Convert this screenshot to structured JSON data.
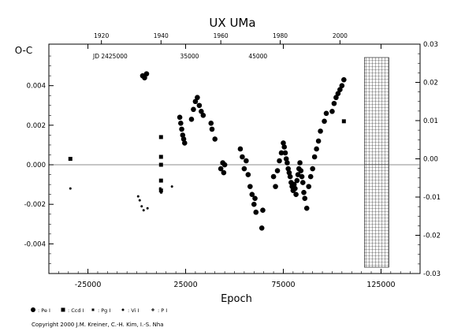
{
  "chart_data": {
    "type": "scatter",
    "title": "UX UMa",
    "xlabel": "Epoch",
    "ylabel_left": "O-C",
    "xlim": [
      -45000,
      145000
    ],
    "ylim_left": [
      -0.0055,
      0.0061
    ],
    "ylim_right": [
      -0.03,
      0.03
    ],
    "x_ticks": [
      "-25000",
      "25000",
      "75000",
      "125000"
    ],
    "x_tick_values": [
      -25000,
      25000,
      75000,
      125000
    ],
    "y_ticks_left": [
      "-0.004",
      "-0.002",
      "0.000",
      "0.002",
      "0.004"
    ],
    "y_tick_values_left": [
      -0.004,
      -0.002,
      0.0,
      0.002,
      0.004
    ],
    "y_ticks_right": [
      "-0.03",
      "-0.02",
      "-0.01",
      "0.00",
      "0.01",
      "0.02",
      "0.03"
    ],
    "y_tick_values_right": [
      -0.03,
      -0.02,
      -0.01,
      0.0,
      0.01,
      0.02,
      0.03
    ],
    "top_axis": {
      "year_ticks": [
        "1920",
        "1940",
        "1960",
        "1980",
        "2000"
      ],
      "year_tick_epochs": [
        -18100,
        12400,
        43000,
        73400,
        104000
      ],
      "jd_label": "JD 2425000",
      "jd_ticks": [
        "35000",
        "45000"
      ],
      "jd_tick_epochs": [
        27000,
        62000
      ]
    },
    "series": [
      {
        "name": ": Pe I",
        "marker": "circle",
        "x": [
          3000,
          4000,
          5000,
          22000,
          22500,
          23000,
          23500,
          24000,
          24500,
          28000,
          29000,
          30000,
          31000,
          32000,
          33000,
          34000,
          38000,
          38500,
          40000,
          43000,
          44000,
          44500,
          45000,
          53000,
          54000,
          55000,
          56000,
          57000,
          58000,
          59000,
          60000,
          60500,
          61000,
          64000,
          64500,
          70000,
          71000,
          72000,
          73000,
          74000,
          75000,
          75500,
          76000,
          76500,
          77000,
          77500,
          78000,
          78500,
          79000,
          79500,
          80000,
          80500,
          81000,
          81500,
          82000,
          82500,
          83000,
          83500,
          84000,
          84500,
          85000,
          85500,
          86000,
          87000,
          88000,
          89000,
          90000,
          91000,
          92000,
          93000,
          94000,
          96000,
          97000,
          100000,
          101000,
          102000,
          103000,
          104000,
          105000,
          106000
        ],
        "y": [
          0.0045,
          0.0044,
          0.0046,
          0.0024,
          0.0021,
          0.0018,
          0.0015,
          0.0013,
          0.0011,
          0.0023,
          0.0028,
          0.0032,
          0.0034,
          0.003,
          0.0027,
          0.0025,
          0.0021,
          0.0018,
          0.0013,
          -0.0002,
          0.0001,
          -0.0004,
          0.0,
          0.0008,
          0.0004,
          -0.0002,
          0.0002,
          -0.0005,
          -0.0011,
          -0.0015,
          -0.002,
          -0.0017,
          -0.0024,
          -0.0032,
          -0.0023,
          -0.0006,
          -0.0011,
          -0.0003,
          0.0002,
          0.0006,
          0.0011,
          0.0009,
          0.0006,
          0.0003,
          0.0001,
          -0.0002,
          -0.0004,
          -0.0006,
          -0.0009,
          -0.0011,
          -0.0013,
          -0.001,
          -0.0012,
          -0.0015,
          -0.0008,
          -0.0005,
          -0.0002,
          0.0001,
          -0.0003,
          -0.0006,
          -0.0009,
          -0.0014,
          -0.0017,
          -0.0022,
          -0.0011,
          -0.0006,
          -0.0002,
          0.0004,
          0.0008,
          0.0012,
          0.0017,
          0.0022,
          0.0026,
          0.0027,
          0.0031,
          0.0034,
          0.0036,
          0.0038,
          0.004,
          0.0043
        ],
        "color": "#000000"
      },
      {
        "name": ": Ccd I",
        "marker": "square",
        "x": [
          -34000,
          12400,
          12400,
          12400,
          12400,
          12400,
          106000
        ],
        "y": [
          0.0003,
          0.0014,
          0.0004,
          0.0,
          -0.0008,
          -0.0013,
          0.0022
        ],
        "color": "#000000"
      },
      {
        "name": ": Pg I",
        "marker": "small-square",
        "x": [
          12000,
          12500
        ],
        "y": [
          -0.0012,
          -0.0014
        ],
        "color": "#000000"
      },
      {
        "name": ": Vi I",
        "marker": "dot",
        "x": [
          -34000,
          700,
          1500,
          2500,
          3500,
          5500,
          18000
        ],
        "y": [
          -0.0012,
          -0.0016,
          -0.0018,
          -0.0021,
          -0.0023,
          -0.0022,
          -0.0011
        ],
        "color": "#000000"
      },
      {
        "name": ": P I",
        "marker": "plus",
        "x": [
          12300
        ],
        "y": [
          -0.0008
        ],
        "color": "#000000"
      }
    ],
    "baseline": 0.0,
    "grid": false,
    "shaded_region": {
      "x": [
        116500,
        129000
      ],
      "pattern": "grid-hatch"
    },
    "legend_placement": "bottom-left",
    "annotations": [
      "Copyright 2000 J.M. Kreiner, C.-H. Kim, I.-S. Nha"
    ]
  }
}
